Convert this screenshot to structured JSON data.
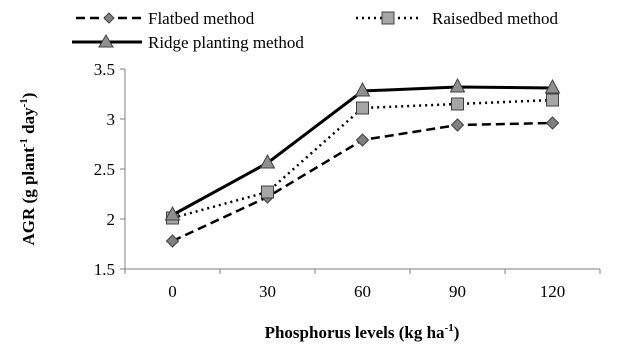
{
  "chart_data": {
    "type": "line",
    "x": [
      0,
      30,
      60,
      90,
      120
    ],
    "categories": [
      "0",
      "30",
      "60",
      "90",
      "120"
    ],
    "ylim": [
      1.5,
      3.5
    ],
    "yticks": [
      "1.5",
      "2",
      "2.5",
      "3",
      "3.5"
    ],
    "xlabel": {
      "main": "Phosphorus levels (kg ha",
      "sup": "-1",
      "end": ")"
    },
    "ylabel": {
      "part1": "AGR (g  plant",
      "sup1": "-1",
      "part2": " day",
      "sup2": "-1",
      "end": ")"
    },
    "legend_position": "top",
    "grid": false,
    "series": [
      {
        "name": "Flatbed method",
        "values": [
          1.78,
          2.22,
          2.79,
          2.94,
          2.96
        ],
        "line_style": "dashed",
        "marker": "diamond",
        "color": "#000000",
        "marker_color": "#808080"
      },
      {
        "name": "Raisedbed method",
        "values": [
          2.01,
          2.27,
          3.11,
          3.15,
          3.19
        ],
        "line_style": "dotted",
        "marker": "square",
        "color": "#000000",
        "marker_color": "#a6a6a6"
      },
      {
        "name": "Ridge planting method",
        "values": [
          2.04,
          2.56,
          3.28,
          3.32,
          3.31
        ],
        "line_style": "solid",
        "marker": "triangle",
        "color": "#000000",
        "marker_color": "#909090"
      }
    ]
  }
}
